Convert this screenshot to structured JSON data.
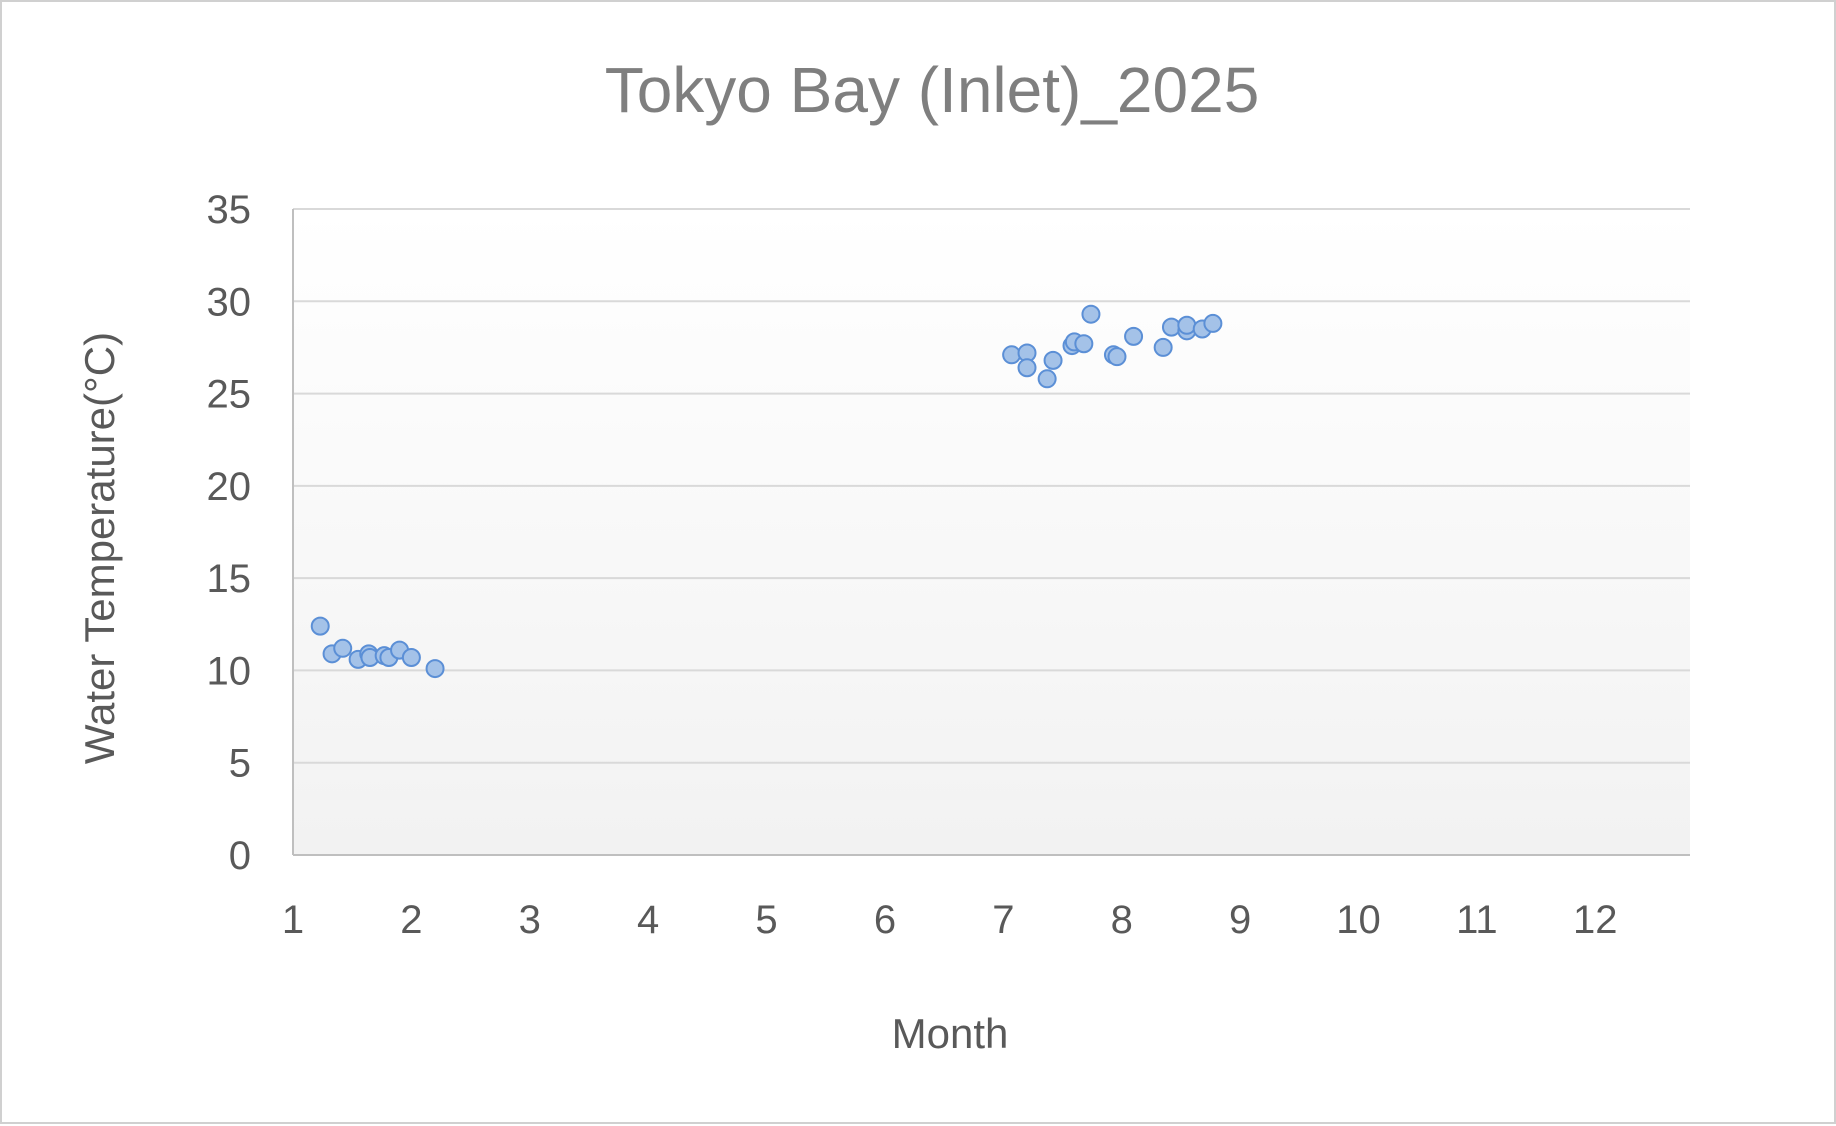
{
  "chart_data": {
    "type": "scatter",
    "title": "Tokyo Bay (Inlet)_2025",
    "xlabel": "Month",
    "ylabel": "Water Temperature(°C)",
    "xlim": [
      1,
      12.8
    ],
    "ylim": [
      0,
      35
    ],
    "x_ticks": [
      "1",
      "2",
      "3",
      "4",
      "5",
      "6",
      "7",
      "8",
      "9",
      "10",
      "11",
      "12"
    ],
    "x_tick_values": [
      1,
      2,
      3,
      4,
      5,
      6,
      7,
      8,
      9,
      10,
      11,
      12
    ],
    "y_ticks": [
      "0",
      "5",
      "10",
      "15",
      "20",
      "25",
      "30",
      "35"
    ],
    "y_tick_values": [
      0,
      5,
      10,
      15,
      20,
      25,
      30,
      35
    ],
    "grid": true,
    "legend": "none",
    "colors": {
      "marker_fill": "#a4c2e8",
      "marker_edge": "#5b8fd6",
      "title": "#7f7f7f",
      "axis_text": "#595959",
      "grid": "#d9d9d9"
    },
    "series": [
      {
        "points": [
          {
            "x": 1.23,
            "y": 12.4
          },
          {
            "x": 1.33,
            "y": 10.9
          },
          {
            "x": 1.42,
            "y": 11.2
          },
          {
            "x": 1.55,
            "y": 10.6
          },
          {
            "x": 1.64,
            "y": 10.9
          },
          {
            "x": 1.65,
            "y": 10.7
          },
          {
            "x": 1.77,
            "y": 10.8
          },
          {
            "x": 1.81,
            "y": 10.7
          },
          {
            "x": 1.9,
            "y": 11.1
          },
          {
            "x": 2.0,
            "y": 10.7
          },
          {
            "x": 2.2,
            "y": 10.1
          },
          {
            "x": 7.07,
            "y": 27.1
          },
          {
            "x": 7.2,
            "y": 27.2
          },
          {
            "x": 7.2,
            "y": 26.4
          },
          {
            "x": 7.37,
            "y": 25.8
          },
          {
            "x": 7.42,
            "y": 26.8
          },
          {
            "x": 7.58,
            "y": 27.6
          },
          {
            "x": 7.6,
            "y": 27.8
          },
          {
            "x": 7.68,
            "y": 27.7
          },
          {
            "x": 7.74,
            "y": 29.3
          },
          {
            "x": 7.93,
            "y": 27.1
          },
          {
            "x": 7.96,
            "y": 27.0
          },
          {
            "x": 8.1,
            "y": 28.1
          },
          {
            "x": 8.35,
            "y": 27.5
          },
          {
            "x": 8.42,
            "y": 28.6
          },
          {
            "x": 8.55,
            "y": 28.4
          },
          {
            "x": 8.55,
            "y": 28.7
          },
          {
            "x": 8.68,
            "y": 28.5
          },
          {
            "x": 8.77,
            "y": 28.8
          }
        ]
      }
    ]
  }
}
